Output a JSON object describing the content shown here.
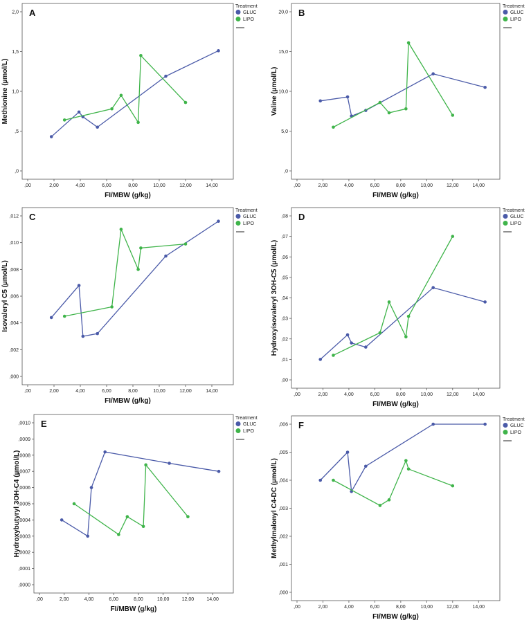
{
  "colors": {
    "GLUC": "#4a5aa8",
    "LIPO": "#3fb44a",
    "axis": "#555555"
  },
  "legend_title": "Treatment",
  "chart_data": [
    {
      "type": "line",
      "panel_label": "A",
      "xlabel": "FI/MBW (g/kg)",
      "ylabel": "Methionine (µmol/L)",
      "xlim": [
        0,
        15
      ],
      "ylim": [
        0,
        2.0
      ],
      "xticks": [
        ",00",
        "2,00",
        "4,00",
        "6,00",
        "8,00",
        "10,00",
        "12,00",
        "14,00"
      ],
      "yticks": [
        ",0",
        ",5",
        "1,0",
        "1,5",
        "2,0"
      ],
      "legend": [
        "GLUC",
        "LIPO"
      ],
      "series": [
        {
          "name": "GLUC",
          "x": [
            1.8,
            3.9,
            4.2,
            5.3,
            10.5,
            14.5
          ],
          "y": [
            0.43,
            0.74,
            0.68,
            0.55,
            1.19,
            1.51
          ]
        },
        {
          "name": "LIPO",
          "x": [
            2.8,
            6.4,
            7.1,
            8.4,
            8.6,
            12.0
          ],
          "y": [
            0.64,
            0.78,
            0.95,
            0.61,
            1.45,
            0.86
          ]
        }
      ]
    },
    {
      "type": "line",
      "panel_label": "B",
      "xlabel": "FI/MBW (g/kg)",
      "ylabel": "Valine (µmol/L)",
      "xlim": [
        0,
        15
      ],
      "ylim": [
        0,
        20.0
      ],
      "xticks": [
        ",00",
        "2,00",
        "4,00",
        "6,00",
        "8,00",
        "10,00",
        "12,00",
        "14,00"
      ],
      "yticks": [
        ",0",
        "5,0",
        "10,0",
        "15,0",
        "20,0"
      ],
      "legend": [
        "GLUC",
        "LIPO"
      ],
      "series": [
        {
          "name": "GLUC",
          "x": [
            1.8,
            3.9,
            4.2,
            5.3,
            10.5,
            14.5
          ],
          "y": [
            8.8,
            9.3,
            6.9,
            7.6,
            12.2,
            10.5
          ]
        },
        {
          "name": "LIPO",
          "x": [
            2.8,
            6.4,
            7.1,
            8.4,
            8.6,
            12.0
          ],
          "y": [
            5.5,
            8.6,
            7.3,
            7.8,
            16.1,
            7.0
          ]
        }
      ]
    },
    {
      "type": "line",
      "panel_label": "C",
      "xlabel": "FI/MBW (g/kg)",
      "ylabel": "Isovaleryl C5 (µmol/L)",
      "xlim": [
        0,
        15
      ],
      "ylim": [
        0,
        0.012
      ],
      "xticks": [
        ",00",
        "2,00",
        "4,00",
        "6,00",
        "8,00",
        "10,00",
        "12,00",
        "14,00"
      ],
      "yticks": [
        ",000",
        ",002",
        ",004",
        ",006",
        ",008",
        ",010",
        ",012"
      ],
      "legend": [
        "GLUC",
        "LIPO"
      ],
      "series": [
        {
          "name": "GLUC",
          "x": [
            1.8,
            3.9,
            4.2,
            5.3,
            10.5,
            14.5
          ],
          "y": [
            0.0044,
            0.0068,
            0.003,
            0.0032,
            0.009,
            0.0116
          ]
        },
        {
          "name": "LIPO",
          "x": [
            2.8,
            6.4,
            7.1,
            8.4,
            8.6,
            12.0
          ],
          "y": [
            0.0045,
            0.0052,
            0.011,
            0.008,
            0.0096,
            0.0099
          ]
        }
      ]
    },
    {
      "type": "line",
      "panel_label": "D",
      "xlabel": "FI/MBW (g/kg)",
      "ylabel": "Hydroxyisovaleryl 3OH-C5 (µmol/L)",
      "xlim": [
        0,
        15
      ],
      "ylim": [
        0,
        0.08
      ],
      "xticks": [
        ",00",
        "2,00",
        "4,00",
        "6,00",
        "8,00",
        "10,00",
        "12,00",
        "14,00"
      ],
      "yticks": [
        ",00",
        ",01",
        ",02",
        ",03",
        ",04",
        ",05",
        ",06",
        ",07",
        ",08"
      ],
      "legend": [
        "GLUC",
        "LIPO"
      ],
      "series": [
        {
          "name": "GLUC",
          "x": [
            1.8,
            3.9,
            4.2,
            5.3,
            10.5,
            14.5
          ],
          "y": [
            0.01,
            0.022,
            0.018,
            0.016,
            0.045,
            0.038
          ]
        },
        {
          "name": "LIPO",
          "x": [
            2.8,
            6.4,
            7.1,
            8.4,
            8.6,
            12.0
          ],
          "y": [
            0.012,
            0.023,
            0.038,
            0.021,
            0.031,
            0.07
          ]
        }
      ]
    },
    {
      "type": "line",
      "panel_label": "E",
      "xlabel": "FI/MBW (g/kg)",
      "ylabel": "Hydroxybutyryl 3OH-C4 (µmol/L)",
      "xlim": [
        0,
        15
      ],
      "ylim": [
        0,
        0.001
      ],
      "xticks": [
        ",00",
        "2,00",
        "4,00",
        "6,00",
        "8,00",
        "10,00",
        "12,00",
        "14,00"
      ],
      "yticks": [
        ",0000",
        ",0001",
        ",0002",
        ",0003",
        ",0004",
        ",0005",
        ",0006",
        ",0007",
        ",0008",
        ",0009",
        ",0010"
      ],
      "legend": [
        "GLUC",
        "LIPO"
      ],
      "series": [
        {
          "name": "GLUC",
          "x": [
            1.8,
            3.9,
            4.2,
            5.3,
            10.5,
            14.5
          ],
          "y": [
            0.0004,
            0.0003,
            0.0006,
            0.00082,
            0.00075,
            0.0007
          ]
        },
        {
          "name": "LIPO",
          "x": [
            2.8,
            6.4,
            7.1,
            8.4,
            8.6,
            12.0
          ],
          "y": [
            0.0005,
            0.00031,
            0.00042,
            0.00036,
            0.00074,
            0.00042
          ]
        }
      ]
    },
    {
      "type": "line",
      "panel_label": "F",
      "xlabel": "FI/MBW (g/kg)",
      "ylabel": "Methylmalonyl C4-DC (µmol/L)",
      "xlim": [
        0,
        15
      ],
      "ylim": [
        0,
        0.006
      ],
      "xticks": [
        ",00",
        "2,00",
        "4,00",
        "6,00",
        "8,00",
        "10,00",
        "12,00",
        "14,00"
      ],
      "yticks": [
        ",000",
        ",001",
        ",002",
        ",003",
        ",004",
        ",005",
        ",006"
      ],
      "legend": [
        "GLUC",
        "LIPO"
      ],
      "series": [
        {
          "name": "GLUC",
          "x": [
            1.8,
            3.9,
            4.2,
            5.3,
            10.5,
            14.5
          ],
          "y": [
            0.004,
            0.005,
            0.0036,
            0.0045,
            0.006,
            0.006
          ]
        },
        {
          "name": "LIPO",
          "x": [
            2.8,
            6.4,
            7.1,
            8.4,
            8.6,
            12.0
          ],
          "y": [
            0.004,
            0.0031,
            0.0033,
            0.0047,
            0.0044,
            0.0038
          ]
        }
      ]
    }
  ]
}
